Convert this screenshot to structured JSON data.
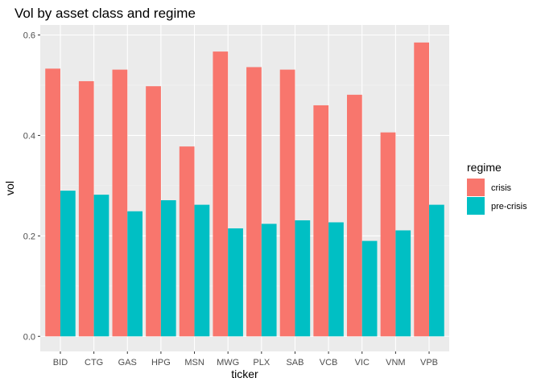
{
  "chart_data": {
    "type": "bar",
    "title": "Vol by asset class and regime",
    "xlabel": "ticker",
    "ylabel": "vol",
    "categories": [
      "BID",
      "CTG",
      "GAS",
      "HPG",
      "MSN",
      "MWG",
      "PLX",
      "SAB",
      "VCB",
      "VIC",
      "VNM",
      "VPB"
    ],
    "series": [
      {
        "name": "crisis",
        "color": "#F8766D",
        "values": [
          0.533,
          0.508,
          0.531,
          0.498,
          0.378,
          0.567,
          0.536,
          0.531,
          0.46,
          0.481,
          0.406,
          0.585
        ]
      },
      {
        "name": "pre-crisis",
        "color": "#00BFC4",
        "values": [
          0.29,
          0.282,
          0.249,
          0.271,
          0.262,
          0.215,
          0.224,
          0.231,
          0.227,
          0.19,
          0.211,
          0.262
        ]
      }
    ],
    "ylim": [
      -0.03,
      0.62
    ],
    "yticks": [
      "0.0",
      "0.2",
      "0.4",
      "0.6"
    ],
    "grid": true,
    "legend": {
      "title": "regime",
      "placement": "right"
    }
  }
}
